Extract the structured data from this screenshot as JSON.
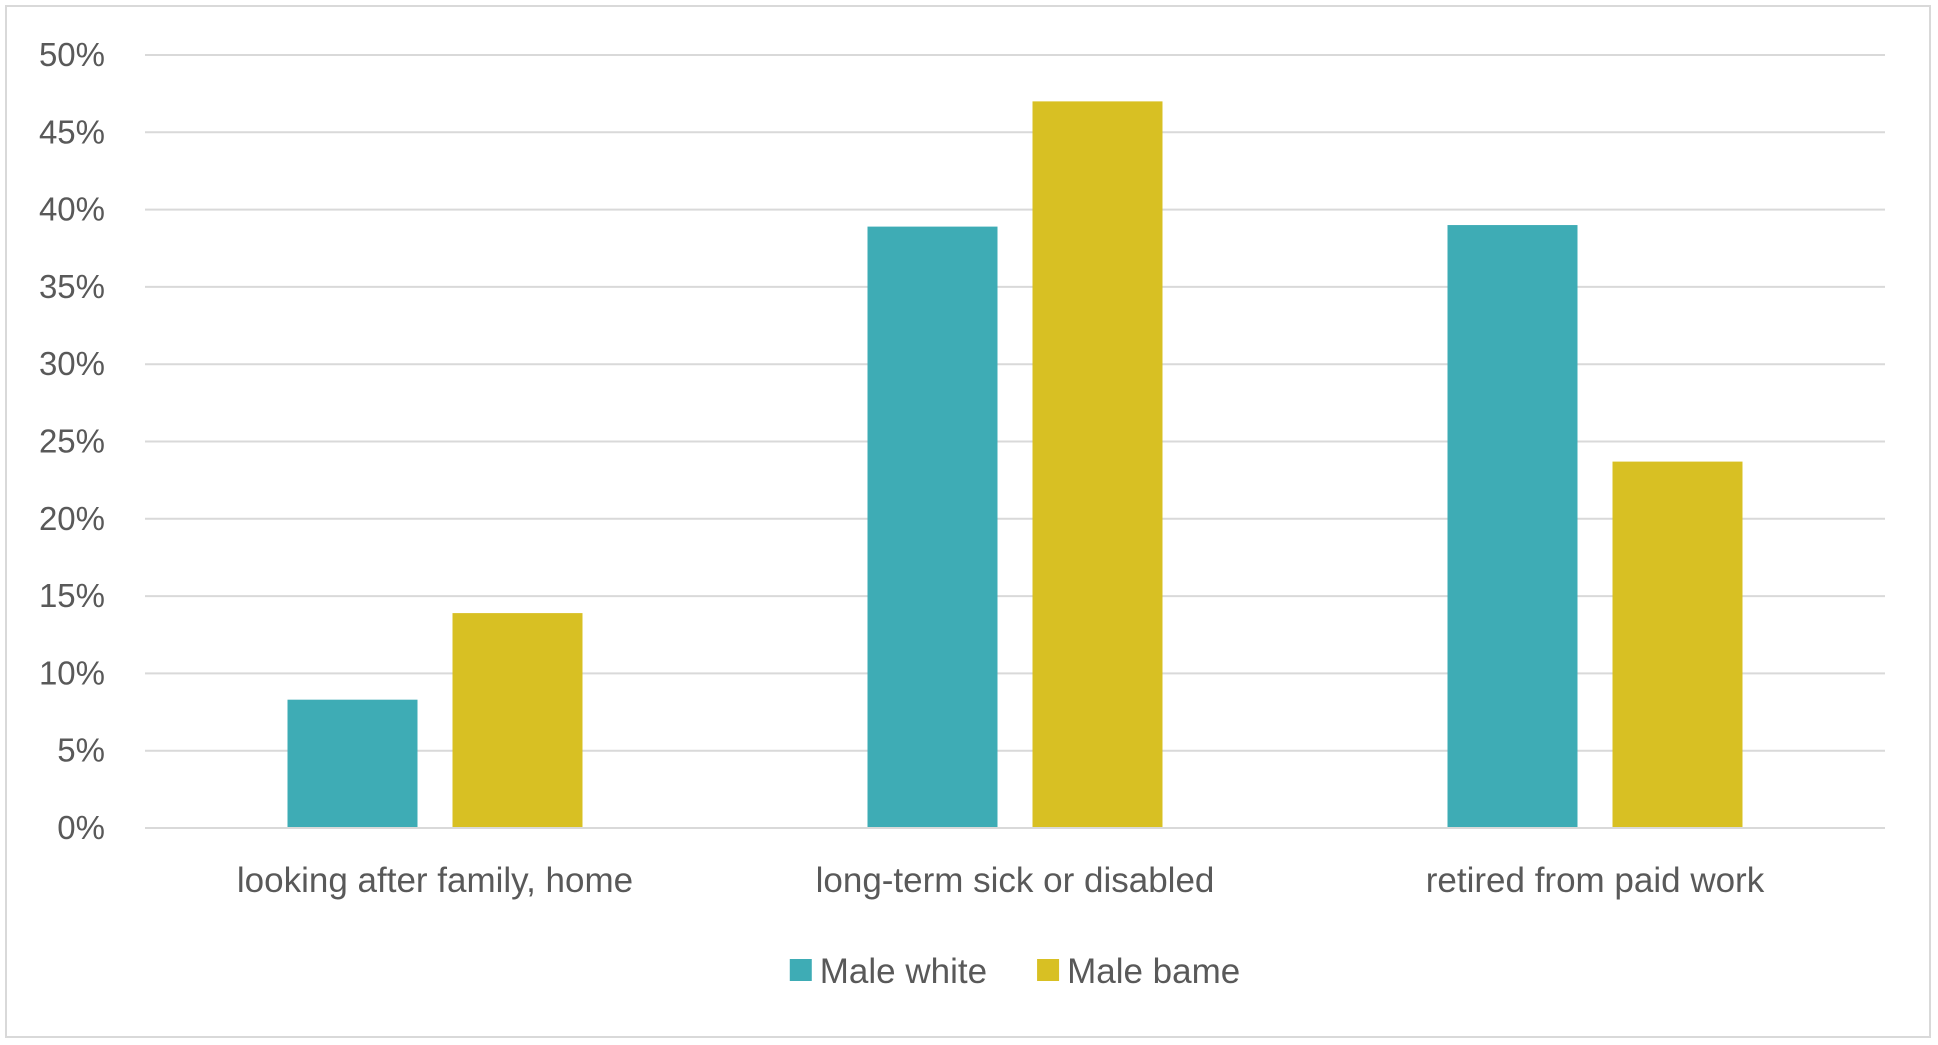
{
  "chart_data": {
    "type": "bar",
    "categories": [
      "looking after family, home",
      "long-term sick or disabled",
      "retired from paid work"
    ],
    "series": [
      {
        "name": "Male white",
        "values": [
          8.3,
          38.9,
          39.0
        ],
        "color": "#3eacb5"
      },
      {
        "name": "Male bame",
        "values": [
          13.9,
          47.0,
          23.7
        ],
        "color": "#d8c023"
      }
    ],
    "y_ticks": [
      "0%",
      "5%",
      "10%",
      "15%",
      "20%",
      "25%",
      "30%",
      "35%",
      "40%",
      "45%",
      "50%"
    ],
    "ylim": [
      0,
      50
    ],
    "y_unit": "%",
    "grid": true,
    "legend_position": "bottom",
    "colors": {
      "grid": "#d9d9d9",
      "text": "#595959",
      "border": "#d9d9d9"
    }
  }
}
